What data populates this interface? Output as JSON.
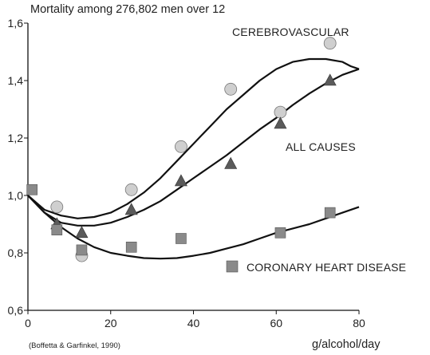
{
  "chart_data": {
    "type": "scatter",
    "title": "Mortality among 276,802 men over 12",
    "xlabel": "g/alcohol/day",
    "ylabel": "",
    "source": "(Boffetta & Garfinkel, 1990)",
    "xlim": [
      0,
      80
    ],
    "ylim": [
      0.6,
      1.6
    ],
    "x_ticks": [
      0,
      20,
      40,
      60,
      80
    ],
    "y_ticks": [
      0.6,
      0.8,
      1.0,
      1.2,
      1.4,
      1.6
    ],
    "y_tick_labels": [
      "0,6",
      "0,8",
      "1,0",
      "1,2",
      "1,4",
      "1,6"
    ],
    "grid": false,
    "colors": {
      "circle_fill": "#cfcfcf",
      "triangle_fill": "#5a5a5a",
      "square_fill": "#8a8a8a",
      "line": "#111111"
    },
    "series": [
      {
        "name": "CEREBROVASCULAR",
        "marker": "circle",
        "x": [
          7,
          13,
          25,
          37,
          49,
          61,
          73
        ],
        "y": [
          0.96,
          0.79,
          1.02,
          1.17,
          1.37,
          1.29,
          1.53
        ],
        "trend_x": [
          0,
          4,
          8,
          12,
          16,
          20,
          24,
          28,
          32,
          36,
          40,
          44,
          48,
          52,
          56,
          60,
          64,
          68,
          72,
          76,
          78,
          80
        ],
        "trend_y": [
          1.0,
          0.95,
          0.93,
          0.92,
          0.925,
          0.94,
          0.97,
          1.01,
          1.06,
          1.12,
          1.18,
          1.24,
          1.3,
          1.35,
          1.4,
          1.44,
          1.465,
          1.475,
          1.475,
          1.465,
          1.45,
          1.44
        ]
      },
      {
        "name": "ALL CAUSES",
        "marker": "triangle",
        "x": [
          7,
          13,
          25,
          37,
          49,
          61,
          73
        ],
        "y": [
          0.9,
          0.87,
          0.95,
          1.05,
          1.11,
          1.25,
          1.4
        ],
        "trend_x": [
          0,
          4,
          8,
          12,
          16,
          20,
          24,
          28,
          32,
          36,
          40,
          44,
          48,
          52,
          56,
          60,
          64,
          68,
          72,
          76,
          80
        ],
        "trend_y": [
          1.0,
          0.94,
          0.905,
          0.895,
          0.895,
          0.905,
          0.925,
          0.95,
          0.98,
          1.02,
          1.06,
          1.1,
          1.14,
          1.185,
          1.23,
          1.27,
          1.315,
          1.355,
          1.39,
          1.42,
          1.44
        ]
      },
      {
        "name": "CORONARY HEART DISEASE",
        "marker": "square",
        "x": [
          1,
          7,
          13,
          25,
          37,
          61,
          73
        ],
        "y": [
          1.02,
          0.88,
          0.81,
          0.82,
          0.85,
          0.87,
          0.94
        ],
        "trend_x": [
          0,
          4,
          8,
          12,
          16,
          20,
          24,
          28,
          32,
          36,
          40,
          44,
          48,
          52,
          56,
          60,
          64,
          68,
          72,
          76,
          80
        ],
        "trend_y": [
          1.0,
          0.94,
          0.89,
          0.85,
          0.82,
          0.8,
          0.79,
          0.782,
          0.78,
          0.782,
          0.79,
          0.8,
          0.815,
          0.83,
          0.85,
          0.87,
          0.885,
          0.9,
          0.92,
          0.94,
          0.96
        ]
      }
    ]
  }
}
